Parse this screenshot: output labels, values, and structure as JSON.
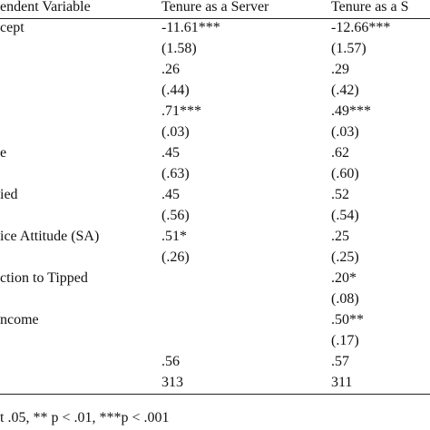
{
  "table": {
    "header": [
      "endent Variable",
      "Tenure as a Server",
      "Tenure as a S"
    ],
    "rows": [
      {
        "label": "cept",
        "c1": "-11.61***",
        "c2": "-12.66***"
      },
      {
        "c1": "(1.58)",
        "c2": "(1.57)"
      },
      {
        "c1": ".26",
        "c2": ".29"
      },
      {
        "c1": "(.44)",
        "c2": "(.42)"
      },
      {
        "c1": ".71***",
        "c2": ".49***"
      },
      {
        "c1": "(.03)",
        "c2": "(.03)"
      },
      {
        "label": "e",
        "c1": ".45",
        "c2": ".62"
      },
      {
        "c1": "(.63)",
        "c2": "(.60)"
      },
      {
        "label": "ied",
        "c1": ".45",
        "c2": ".52"
      },
      {
        "c1": "(.56)",
        "c2": "(.54)"
      },
      {
        "label": "ice Attitude (SA)",
        "c1": ".51*",
        "c2": ".25"
      },
      {
        "c1": "(.26)",
        "c2": "(.25)"
      },
      {
        "label": "ction to Tipped",
        "c2": ".20*"
      },
      {
        "c2": "(.08)"
      },
      {
        "label": "ncome",
        "c2": ".50**"
      },
      {
        "c2": "(.17)"
      },
      {
        "c1": ".56",
        "c2": ".57"
      },
      {
        "c1": "313",
        "c2": "311"
      }
    ],
    "footnote": "t .05, ** p < .01, ***p < .001"
  }
}
